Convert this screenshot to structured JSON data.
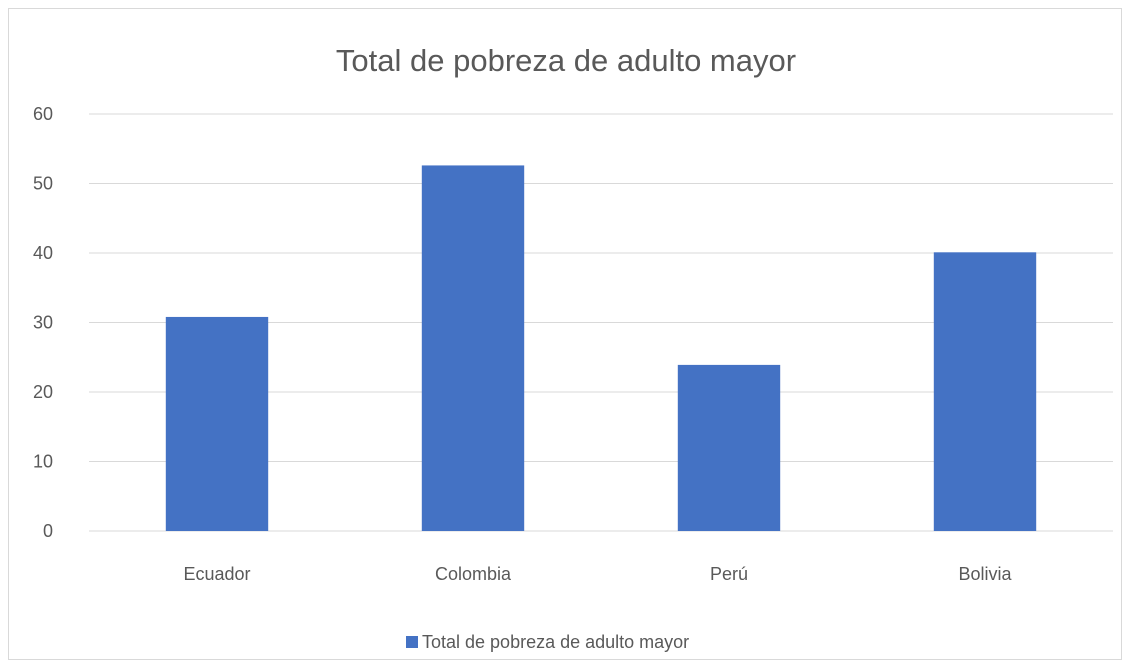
{
  "chart_data": {
    "type": "bar",
    "title": "Total de pobreza de adulto mayor",
    "xlabel": "",
    "ylabel": "",
    "categories": [
      "Ecuador",
      "Colombia",
      "Perú",
      "Bolivia"
    ],
    "series": [
      {
        "name": "Total de pobreza de adulto mayor",
        "values": [
          30.8,
          52.6,
          23.9,
          40.1
        ],
        "color": "#4472C4"
      }
    ],
    "ylim": [
      0,
      60
    ],
    "yticks": [
      0,
      10,
      20,
      30,
      40,
      50,
      60
    ],
    "grid": true,
    "legend": "bottom"
  }
}
